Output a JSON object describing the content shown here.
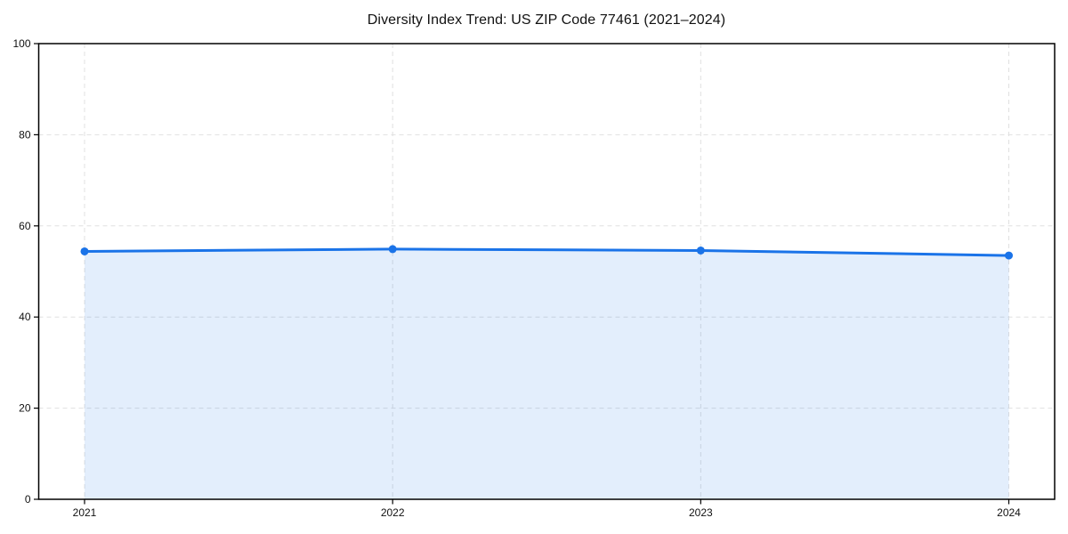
{
  "chart_data": {
    "type": "line",
    "title": "Diversity Index Trend: US ZIP Code 77461 (2021–2024)",
    "x": [
      "2021",
      "2022",
      "2023",
      "2024"
    ],
    "series": [
      {
        "name": "Diversity Index",
        "values": [
          54.4,
          54.9,
          54.6,
          53.5
        ]
      }
    ],
    "xlabel": "",
    "ylabel": "",
    "ylim": [
      0,
      100
    ],
    "yticks": [
      0,
      20,
      40,
      60,
      80,
      100
    ],
    "grid": true,
    "grid_style": "dashed",
    "legend_position": "none",
    "area_fill": true,
    "colors": {
      "line": "#1a73e8",
      "marker": "#1a73e8",
      "area_fill": "rgba(26,115,232,0.12)",
      "gridline": "#e0e0e0",
      "axis": "#000000",
      "background": "#ffffff",
      "title_text": "#111111",
      "tick_text": "#111111"
    }
  }
}
